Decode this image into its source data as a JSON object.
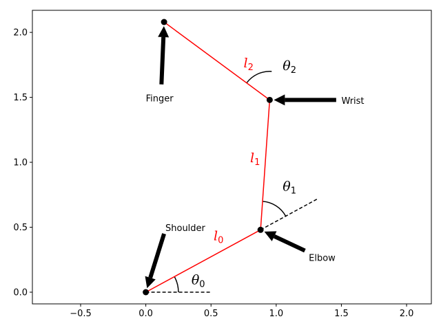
{
  "chart_data": {
    "type": "line",
    "title": "",
    "xlabel": "",
    "ylabel": "",
    "xlim": [
      -0.87,
      2.19
    ],
    "ylim": [
      -0.09,
      2.17
    ],
    "grid": false,
    "x_ticks": [
      "−0.5",
      "0.0",
      "0.5",
      "1.0",
      "1.5",
      "2.0"
    ],
    "x_tick_values": [
      -0.5,
      0.0,
      0.5,
      1.0,
      1.5,
      2.0
    ],
    "y_ticks": [
      "0.0",
      "0.5",
      "1.0",
      "1.5",
      "2.0"
    ],
    "y_tick_values": [
      0.0,
      0.5,
      1.0,
      1.5,
      2.0
    ],
    "arm_color": "#ff0000",
    "joints": [
      {
        "name": "Shoulder",
        "x": 0.0,
        "y": 0.0
      },
      {
        "name": "Elbow",
        "x": 0.88,
        "y": 0.48
      },
      {
        "name": "Wrist",
        "x": 0.95,
        "y": 1.48
      },
      {
        "name": "Finger",
        "x": 0.14,
        "y": 2.08
      }
    ],
    "link_labels": [
      {
        "base": "l",
        "sub": "0",
        "x": 0.52,
        "y": 0.4
      },
      {
        "base": "l",
        "sub": "1",
        "x": 0.8,
        "y": 1.0
      },
      {
        "base": "l",
        "sub": "2",
        "x": 0.75,
        "y": 1.73
      }
    ],
    "reference_lines": [
      {
        "from": [
          0.0,
          0.0
        ],
        "to": [
          0.5,
          0.0
        ]
      },
      {
        "from": [
          0.88,
          0.48
        ],
        "to": [
          1.32,
          0.72
        ]
      }
    ],
    "angles": [
      {
        "base": "θ",
        "sub": "0",
        "center": [
          0.0,
          0.0
        ],
        "radius": 0.25,
        "start_deg": 0,
        "end_deg": 28.6,
        "label_x": 0.35,
        "label_y": 0.06
      },
      {
        "base": "θ",
        "sub": "1",
        "center": [
          0.88,
          0.48
        ],
        "radius": 0.22,
        "start_deg": 28.6,
        "end_deg": 86.0,
        "label_x": 1.05,
        "label_y": 0.78
      },
      {
        "base": "θ",
        "sub": "2",
        "center": [
          0.95,
          1.48
        ],
        "radius": 0.22,
        "start_deg": 86.0,
        "end_deg": 143.5,
        "label_x": 1.05,
        "label_y": 1.71
      }
    ],
    "annotations": [
      {
        "text": "Shoulder",
        "text_x": 0.15,
        "text_y": 0.47,
        "arrow_from": [
          0.14,
          0.45
        ],
        "arrow_to": [
          0.0,
          0.0
        ]
      },
      {
        "text": "Elbow",
        "text_x": 1.25,
        "text_y": 0.24,
        "arrow_from": [
          1.22,
          0.32
        ],
        "arrow_to": [
          0.88,
          0.48
        ]
      },
      {
        "text": "Wrist",
        "text_x": 1.5,
        "text_y": 1.45,
        "arrow_from": [
          1.46,
          1.48
        ],
        "arrow_to": [
          0.95,
          1.48
        ]
      },
      {
        "text": "Finger",
        "text_x": 0.0,
        "text_y": 1.47,
        "arrow_from": [
          0.12,
          1.6
        ],
        "arrow_to": [
          0.14,
          2.08
        ]
      }
    ]
  }
}
